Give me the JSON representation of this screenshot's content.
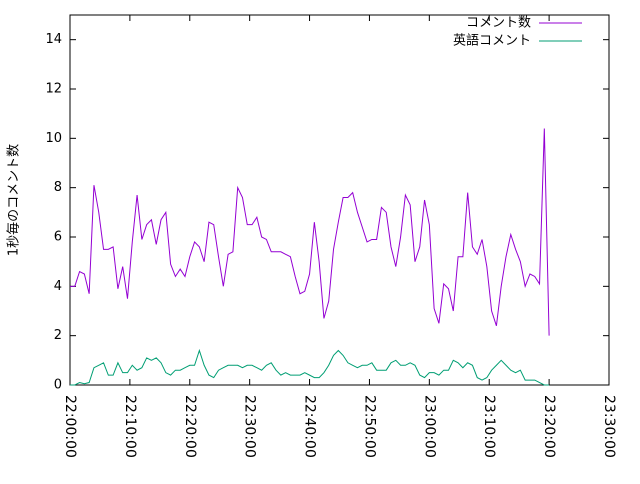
{
  "chart_data": {
    "type": "line",
    "y_label": "1秒毎のコメント数",
    "x": [
      "22:00:00",
      "22:00:48",
      "22:01:36",
      "22:02:24",
      "22:03:12",
      "22:04:00",
      "22:04:48",
      "22:05:36",
      "22:06:24",
      "22:07:12",
      "22:08:00",
      "22:08:48",
      "22:09:36",
      "22:10:24",
      "22:11:12",
      "22:12:00",
      "22:12:48",
      "22:13:36",
      "22:14:24",
      "22:15:12",
      "22:16:00",
      "22:16:48",
      "22:17:36",
      "22:18:24",
      "22:19:12",
      "22:20:00",
      "22:20:48",
      "22:21:36",
      "22:22:24",
      "22:23:12",
      "22:24:00",
      "22:24:48",
      "22:25:36",
      "22:26:24",
      "22:27:12",
      "22:28:00",
      "22:28:48",
      "22:29:36",
      "22:30:24",
      "22:31:12",
      "22:32:00",
      "22:32:48",
      "22:33:36",
      "22:34:24",
      "22:35:12",
      "22:36:00",
      "22:36:48",
      "22:37:36",
      "22:38:24",
      "22:39:12",
      "22:40:00",
      "22:40:48",
      "22:41:36",
      "22:42:24",
      "22:43:12",
      "22:44:00",
      "22:44:48",
      "22:45:36",
      "22:46:24",
      "22:47:12",
      "22:48:00",
      "22:48:48",
      "22:49:36",
      "22:50:24",
      "22:51:12",
      "22:52:00",
      "22:52:48",
      "22:53:36",
      "22:54:24",
      "22:55:12",
      "22:56:00",
      "22:56:48",
      "22:57:36",
      "22:58:24",
      "22:59:12",
      "23:00:00",
      "23:00:48",
      "23:01:36",
      "23:02:24",
      "23:03:12",
      "23:04:00",
      "23:04:48",
      "23:05:36",
      "23:06:24",
      "23:07:12",
      "23:08:00",
      "23:08:48",
      "23:09:36",
      "23:10:24",
      "23:11:12",
      "23:12:00",
      "23:12:48",
      "23:13:36",
      "23:14:24",
      "23:15:12",
      "23:16:00",
      "23:16:48",
      "23:17:36",
      "23:18:24",
      "23:19:12",
      "23:20:00"
    ],
    "series": [
      {
        "name": "コメント数",
        "color": "#9400d3",
        "values": [
          4.0,
          4.0,
          4.6,
          4.5,
          3.7,
          8.1,
          7.0,
          5.5,
          5.5,
          5.6,
          3.9,
          4.8,
          3.5,
          5.8,
          7.7,
          5.9,
          6.5,
          6.7,
          5.7,
          6.7,
          7.0,
          4.9,
          4.4,
          4.7,
          4.4,
          5.2,
          5.8,
          5.6,
          5.0,
          6.6,
          6.5,
          5.2,
          4.0,
          5.3,
          5.4,
          8.0,
          7.6,
          6.5,
          6.5,
          6.8,
          6.0,
          5.9,
          5.4,
          5.4,
          5.4,
          5.3,
          5.2,
          4.4,
          3.7,
          3.8,
          4.5,
          6.6,
          5.0,
          2.7,
          3.4,
          5.5,
          6.6,
          7.6,
          7.6,
          7.8,
          7.0,
          6.4,
          5.8,
          5.9,
          5.9,
          7.2,
          7.0,
          5.6,
          4.8,
          6.0,
          7.7,
          7.3,
          5.0,
          5.6,
          7.5,
          6.5,
          3.1,
          2.5,
          4.1,
          3.9,
          3.0,
          5.2,
          5.2,
          7.8,
          5.6,
          5.3,
          5.9,
          4.8,
          3.0,
          2.4,
          4.0,
          5.2,
          6.1,
          5.5,
          5.0,
          4.0,
          4.5,
          4.4,
          4.1,
          10.4,
          2.0
        ]
      },
      {
        "name": "英語コメント",
        "color": "#009e73",
        "values": [
          0.0,
          0.0,
          0.1,
          0.05,
          0.1,
          0.7,
          0.8,
          0.9,
          0.4,
          0.4,
          0.9,
          0.5,
          0.5,
          0.8,
          0.6,
          0.7,
          1.1,
          1.0,
          1.1,
          0.9,
          0.5,
          0.4,
          0.6,
          0.6,
          0.7,
          0.8,
          0.8,
          1.4,
          0.8,
          0.4,
          0.3,
          0.6,
          0.7,
          0.8,
          0.8,
          0.8,
          0.7,
          0.8,
          0.8,
          0.7,
          0.6,
          0.8,
          0.9,
          0.6,
          0.4,
          0.5,
          0.4,
          0.4,
          0.4,
          0.5,
          0.4,
          0.3,
          0.3,
          0.5,
          0.8,
          1.2,
          1.4,
          1.2,
          0.9,
          0.8,
          0.7,
          0.8,
          0.8,
          0.9,
          0.6,
          0.6,
          0.6,
          0.9,
          1.0,
          0.8,
          0.8,
          0.9,
          0.8,
          0.4,
          0.3,
          0.5,
          0.5,
          0.4,
          0.6,
          0.6,
          1.0,
          0.9,
          0.7,
          0.9,
          0.8,
          0.3,
          0.2,
          0.3,
          0.6,
          0.8,
          1.0,
          0.8,
          0.6,
          0.5,
          0.6,
          0.2,
          0.2,
          0.2,
          0.1,
          0.0,
          0.0
        ]
      }
    ],
    "xlim": [
      "22:00:00",
      "23:30:00"
    ],
    "xticks": [
      "22:00:00",
      "22:10:00",
      "22:20:00",
      "22:30:00",
      "22:40:00",
      "22:50:00",
      "23:00:00",
      "23:10:00",
      "23:20:00",
      "23:30:00"
    ],
    "ylim": [
      0,
      15
    ],
    "yticks": [
      0,
      2,
      4,
      6,
      8,
      10,
      12,
      14
    ],
    "grid": false,
    "legend": "top-right"
  }
}
